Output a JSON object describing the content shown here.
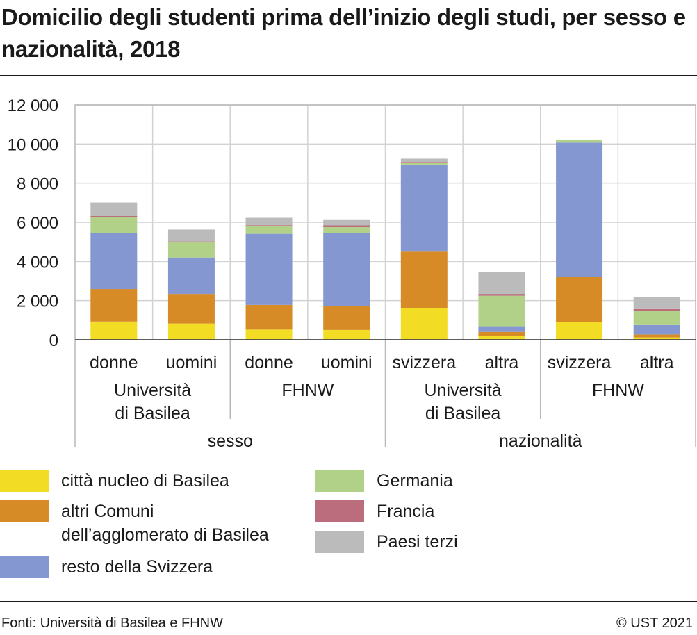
{
  "chart_data": {
    "type": "bar",
    "stacked": true,
    "title": "Domicilio degli studenti prima dell’inizio degli studi, per sesso e nazionalità, 2018",
    "xlabel": "",
    "ylabel": "",
    "ylim": [
      0,
      12000
    ],
    "yticks": [
      0,
      2000,
      4000,
      6000,
      8000,
      10000,
      12000
    ],
    "ytick_labels": [
      "0",
      "2 000",
      "4 000",
      "6 000",
      "8 000",
      "10 000",
      "12 000"
    ],
    "grid": true,
    "legend_position": "bottom",
    "categories": [
      "donne",
      "uomini",
      "donne",
      "uomini",
      "svizzera",
      "altra",
      "svizzera",
      "altra"
    ],
    "institution_groups": [
      {
        "label": "Università\ndi Basilea",
        "span": [
          0,
          1
        ]
      },
      {
        "label": "FHNW",
        "span": [
          2,
          3
        ]
      },
      {
        "label": "Università\ndi Basilea",
        "span": [
          4,
          5
        ]
      },
      {
        "label": "FHNW",
        "span": [
          6,
          7
        ]
      }
    ],
    "dimension_groups": [
      {
        "label": "sesso",
        "span": [
          0,
          3
        ]
      },
      {
        "label": "nazionalità",
        "span": [
          4,
          7
        ]
      }
    ],
    "series": [
      {
        "name": "città nucleo di Basilea",
        "color": "#f2dc24",
        "values": [
          930,
          830,
          520,
          500,
          1620,
          180,
          920,
          120
        ]
      },
      {
        "name": "altri Comuni\ndell’agglomerato di Basilea",
        "color": "#d68b27",
        "values": [
          1660,
          1510,
          1260,
          1220,
          2880,
          220,
          2280,
          150
        ]
      },
      {
        "name": "resto della Svizzera",
        "color": "#8597d1",
        "values": [
          2860,
          1860,
          3630,
          3740,
          4450,
          290,
          6870,
          480
        ]
      },
      {
        "name": "Germania",
        "color": "#b2d188",
        "values": [
          800,
          770,
          400,
          290,
          100,
          1560,
          130,
          710
        ]
      },
      {
        "name": "Francia",
        "color": "#bb6c7d",
        "values": [
          70,
          50,
          40,
          90,
          30,
          90,
          10,
          110
        ]
      },
      {
        "name": "Paesi terzi",
        "color": "#bbbbbb",
        "values": [
          690,
          610,
          380,
          310,
          170,
          1140,
          0,
          620
        ]
      }
    ]
  },
  "footer": {
    "source": "Fonti: Università di Basilea e FHNW",
    "copyright": "© UST 2021"
  }
}
